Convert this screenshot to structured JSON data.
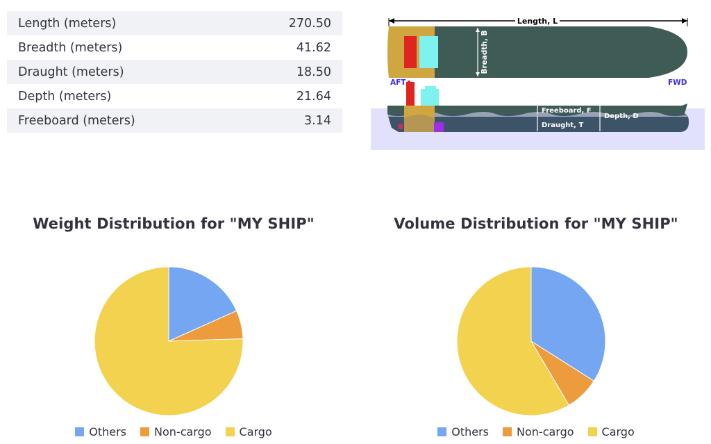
{
  "dimensions": [
    {
      "label": "Length (meters)",
      "value": "270.50"
    },
    {
      "label": "Breadth (meters)",
      "value": "41.62"
    },
    {
      "label": "Draught (meters)",
      "value": "18.50"
    },
    {
      "label": "Depth (meters)",
      "value": "21.64"
    },
    {
      "label": "Freeboard (meters)",
      "value": "3.14"
    }
  ],
  "diagram": {
    "length_label": "Length, L",
    "breadth_label": "Breadth, B",
    "aft_label": "AFT",
    "fwd_label": "FWD",
    "freeboard_label": "Freeboard, F",
    "draught_label": "Draught, T",
    "depth_label": "Depth, D"
  },
  "colors": {
    "others": "#74a6f2",
    "noncargo": "#ec9c3d",
    "cargo": "#f3d250",
    "hull": "#3f5b56",
    "hull_bottom": "#3d5468",
    "sea": "#e2e1fb",
    "superstructure": "#cfa640"
  },
  "chart_data": [
    {
      "type": "pie",
      "title": "Weight Distribution for \"MY SHIP\"",
      "categories": [
        "Others",
        "Non-cargo",
        "Cargo"
      ],
      "values": [
        18.3,
        6.2,
        75.5
      ],
      "legend": "bottom"
    },
    {
      "type": "pie",
      "title": "Volume Distribution for \"MY SHIP\"",
      "categories": [
        "Others",
        "Non-cargo",
        "Cargo"
      ],
      "values": [
        34.0,
        7.5,
        58.5
      ],
      "legend": "bottom"
    }
  ]
}
